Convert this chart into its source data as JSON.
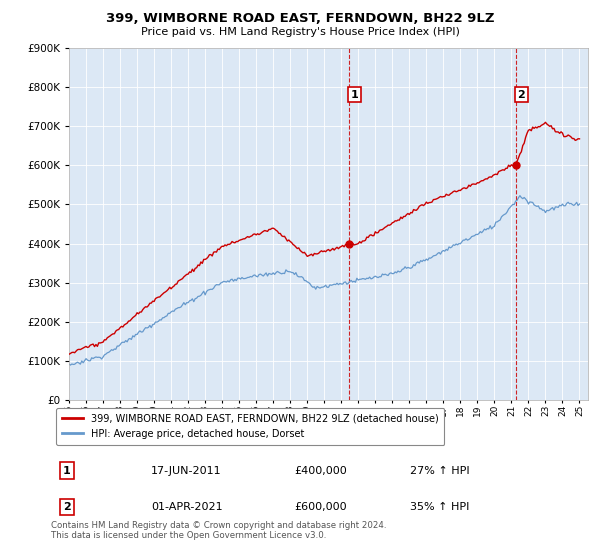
{
  "title": "399, WIMBORNE ROAD EAST, FERNDOWN, BH22 9LZ",
  "subtitle": "Price paid vs. HM Land Registry's House Price Index (HPI)",
  "legend_line1": "399, WIMBORNE ROAD EAST, FERNDOWN, BH22 9LZ (detached house)",
  "legend_line2": "HPI: Average price, detached house, Dorset",
  "annotation1": {
    "label": "1",
    "date": "17-JUN-2011",
    "price": "£400,000",
    "hpi": "27% ↑ HPI"
  },
  "annotation2": {
    "label": "2",
    "date": "01-APR-2021",
    "price": "£600,000",
    "hpi": "35% ↑ HPI"
  },
  "footer": "Contains HM Land Registry data © Crown copyright and database right 2024.\nThis data is licensed under the Open Government Licence v3.0.",
  "hpi_color": "#6699cc",
  "price_color": "#cc0000",
  "marker_color": "#cc0000",
  "background_color": "#ffffff",
  "plot_bg_color": "#dce8f5",
  "vline_color": "#cc0000",
  "ylim": [
    0,
    900000
  ],
  "yticks": [
    0,
    100000,
    200000,
    300000,
    400000,
    500000,
    600000,
    700000,
    800000,
    900000
  ],
  "sale1_year": 2011.46,
  "sale1_price": 400000,
  "sale2_year": 2021.25,
  "sale2_price": 600000
}
